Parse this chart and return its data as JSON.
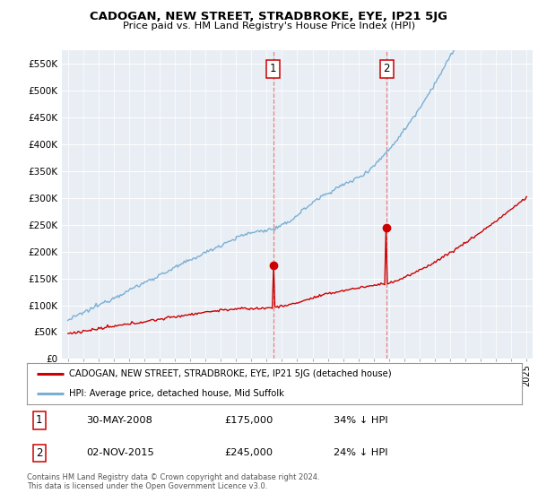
{
  "title": "CADOGAN, NEW STREET, STRADBROKE, EYE, IP21 5JG",
  "subtitle": "Price paid vs. HM Land Registry's House Price Index (HPI)",
  "ylabel_ticks": [
    "£0",
    "£50K",
    "£100K",
    "£150K",
    "£200K",
    "£250K",
    "£300K",
    "£350K",
    "£400K",
    "£450K",
    "£500K",
    "£550K"
  ],
  "ytick_vals": [
    0,
    50000,
    100000,
    150000,
    200000,
    250000,
    300000,
    350000,
    400000,
    450000,
    500000,
    550000
  ],
  "ylim": [
    0,
    575000
  ],
  "sale1_date": "30-MAY-2008",
  "sale1_price": 175000,
  "sale1_pct": "34% ↓ HPI",
  "sale1_year": 2008.42,
  "sale2_date": "02-NOV-2015",
  "sale2_price": 245000,
  "sale2_pct": "24% ↓ HPI",
  "sale2_year": 2015.84,
  "red_line_color": "#cc0000",
  "blue_line_color": "#7aafd4",
  "vline_color": "#e88080",
  "legend_label_red": "CADOGAN, NEW STREET, STRADBROKE, EYE, IP21 5JG (detached house)",
  "legend_label_blue": "HPI: Average price, detached house, Mid Suffolk",
  "footnote": "Contains HM Land Registry data © Crown copyright and database right 2024.\nThis data is licensed under the Open Government Licence v3.0.",
  "background_color": "#ffffff",
  "plot_bg_color": "#e8eef4"
}
